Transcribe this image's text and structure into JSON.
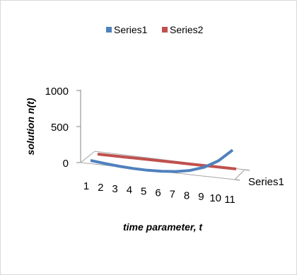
{
  "chart_data": {
    "type": "line",
    "style": "3d-line",
    "title": "",
    "xlabel": "time parameter, t",
    "ylabel": "solution n(t)",
    "depth_label": "Series1",
    "categories": [
      "1",
      "2",
      "3",
      "4",
      "5",
      "6",
      "7",
      "8",
      "9",
      "10",
      "11"
    ],
    "ylim": [
      0,
      1000
    ],
    "yticks": [
      0,
      500,
      1000
    ],
    "grid": false,
    "legend_position": "top",
    "series": [
      {
        "name": "Series1",
        "color": "#4f81bd",
        "values": [
          0,
          -16,
          -28,
          -34,
          -33,
          -22,
          0,
          40,
          110,
          225,
          400
        ]
      },
      {
        "name": "Series2",
        "color": "#c0504d",
        "values": [
          0,
          0,
          0,
          0,
          0,
          0,
          0,
          0,
          0,
          0,
          0
        ]
      }
    ]
  }
}
